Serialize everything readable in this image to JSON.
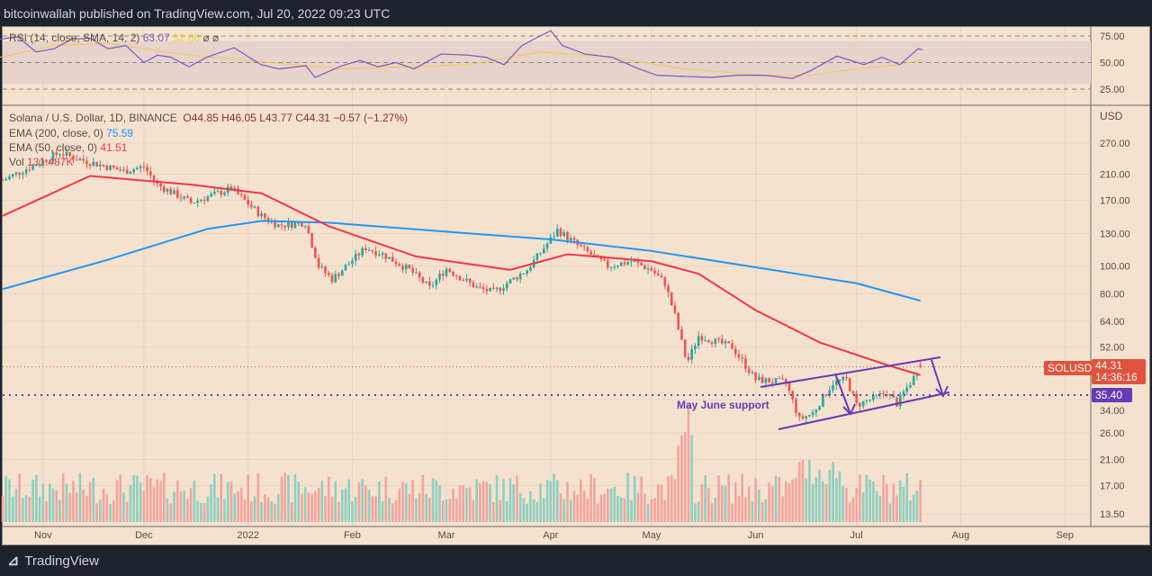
{
  "header": {
    "published": "bitcoinwallah published on TradingView.com, Jul 20, 2022 09:23 UTC"
  },
  "rsi": {
    "label": "RSI (14, close, SMA, 14, 2)",
    "value": "63.07",
    "sma": "52.66",
    "icons": "⌀ ⌀",
    "ticks": [
      "75.00",
      "50.00",
      "25.00"
    ],
    "line": [
      [
        0,
        72
      ],
      [
        20,
        74
      ],
      [
        40,
        60
      ],
      [
        60,
        63
      ],
      [
        80,
        72
      ],
      [
        100,
        73
      ],
      [
        120,
        63
      ],
      [
        140,
        66
      ],
      [
        160,
        50
      ],
      [
        175,
        57
      ],
      [
        190,
        55
      ],
      [
        210,
        46
      ],
      [
        230,
        55
      ],
      [
        260,
        64
      ],
      [
        290,
        48
      ],
      [
        310,
        44
      ],
      [
        340,
        47
      ],
      [
        350,
        36
      ],
      [
        380,
        47
      ],
      [
        400,
        52
      ],
      [
        420,
        46
      ],
      [
        440,
        50
      ],
      [
        460,
        44
      ],
      [
        490,
        58
      ],
      [
        520,
        57
      ],
      [
        540,
        55
      ],
      [
        560,
        48
      ],
      [
        580,
        66
      ],
      [
        600,
        75
      ],
      [
        612,
        80
      ],
      [
        625,
        66
      ],
      [
        650,
        58
      ],
      [
        680,
        55
      ],
      [
        710,
        44
      ],
      [
        730,
        38
      ],
      [
        760,
        37
      ],
      [
        790,
        36
      ],
      [
        820,
        38
      ],
      [
        850,
        38
      ],
      [
        880,
        35
      ],
      [
        900,
        42
      ],
      [
        930,
        56
      ],
      [
        960,
        48
      ],
      [
        980,
        55
      ],
      [
        1000,
        48
      ],
      [
        1020,
        63
      ],
      [
        1025,
        62
      ]
    ],
    "sma_line": [
      [
        0,
        55
      ],
      [
        60,
        66
      ],
      [
        120,
        68
      ],
      [
        200,
        58
      ],
      [
        300,
        50
      ],
      [
        380,
        44
      ],
      [
        450,
        46
      ],
      [
        520,
        48
      ],
      [
        600,
        60
      ],
      [
        680,
        55
      ],
      [
        760,
        44
      ],
      [
        850,
        38
      ],
      [
        900,
        38
      ],
      [
        950,
        44
      ],
      [
        1000,
        48
      ],
      [
        1025,
        52.66
      ]
    ]
  },
  "legend": {
    "title": "Solana / U.S. Dollar, 1D, BINANCE",
    "o": "O44.85",
    "h": "H46.05",
    "l": "L43.77",
    "c": "C44.31",
    "chg": "−0.57 (−1.27%)",
    "ema200_label": "EMA (200, close, 0)",
    "ema200": "75.59",
    "ema50_label": "EMA (50, close, 0)",
    "ema50": "41.51",
    "vol_label": "Vol",
    "vol": "131.487K"
  },
  "colors": {
    "ema200": "#2196f3",
    "ema50": "#f23645",
    "up": "#26a69a",
    "down": "#ef5350",
    "annot": "#673ab7",
    "bg": "#f4e2cf"
  },
  "chart_data": {
    "type": "candlestick",
    "scale": "log",
    "currency": "USD",
    "price_ticks": [
      "270.00",
      "210.00",
      "170.00",
      "130.00",
      "100.00",
      "80.00",
      "64.00",
      "52.00",
      "34.00",
      "26.00",
      "21.00",
      "17.00",
      "13.50"
    ],
    "time_ticks": [
      "Nov",
      "Dec",
      "2022",
      "Feb",
      "Mar",
      "Apr",
      "May",
      "Jun",
      "Jul",
      "Aug",
      "Sep"
    ],
    "close_path": [
      [
        "2021-10-20",
        200
      ],
      [
        "2021-11-06",
        250
      ],
      [
        "2021-11-10",
        240
      ],
      [
        "2021-11-25",
        215
      ],
      [
        "2021-12-01",
        223
      ],
      [
        "2021-12-05",
        193
      ],
      [
        "2021-12-15",
        167
      ],
      [
        "2021-12-27",
        187
      ],
      [
        "2022-01-05",
        150
      ],
      [
        "2022-01-10",
        139
      ],
      [
        "2022-01-18",
        142
      ],
      [
        "2022-01-22",
        100
      ],
      [
        "2022-01-26",
        90
      ],
      [
        "2022-02-05",
        116
      ],
      [
        "2022-02-10",
        110
      ],
      [
        "2022-02-18",
        97
      ],
      [
        "2022-02-24",
        84
      ],
      [
        "2022-03-01",
        98
      ],
      [
        "2022-03-10",
        84
      ],
      [
        "2022-03-15",
        81
      ],
      [
        "2022-03-25",
        97
      ],
      [
        "2022-04-01",
        124
      ],
      [
        "2022-04-03",
        134
      ],
      [
        "2022-04-10",
        116
      ],
      [
        "2022-04-18",
        100
      ],
      [
        "2022-04-25",
        104
      ],
      [
        "2022-05-01",
        97
      ],
      [
        "2022-05-05",
        87
      ],
      [
        "2022-05-08",
        67
      ],
      [
        "2022-05-11",
        48.5
      ],
      [
        "2022-05-12",
        47
      ],
      [
        "2022-05-15",
        57
      ],
      [
        "2022-05-25",
        52
      ],
      [
        "2022-06-01",
        40
      ],
      [
        "2022-06-10",
        39
      ],
      [
        "2022-06-14",
        29
      ],
      [
        "2022-06-18",
        30.5
      ],
      [
        "2022-06-24",
        39
      ],
      [
        "2022-06-28",
        40
      ],
      [
        "2022-07-01",
        32.6
      ],
      [
        "2022-07-05",
        34
      ],
      [
        "2022-07-10",
        36
      ],
      [
        "2022-07-13",
        33
      ],
      [
        "2022-07-17",
        39
      ],
      [
        "2022-07-20",
        44.31
      ]
    ],
    "ema200": [
      [
        "2021-10-20",
        83
      ],
      [
        "2021-11-20",
        105
      ],
      [
        "2021-12-20",
        135
      ],
      [
        "2022-01-05",
        144
      ],
      [
        "2022-01-25",
        142
      ],
      [
        "2022-03-01",
        132
      ],
      [
        "2022-04-01",
        124
      ],
      [
        "2022-05-01",
        113
      ],
      [
        "2022-06-01",
        99
      ],
      [
        "2022-07-01",
        87
      ],
      [
        "2022-07-20",
        75.59
      ]
    ],
    "ema50": [
      [
        "2021-10-20",
        150
      ],
      [
        "2021-11-15",
        207
      ],
      [
        "2021-12-15",
        193
      ],
      [
        "2022-01-05",
        180
      ],
      [
        "2022-01-25",
        138
      ],
      [
        "2022-02-20",
        108
      ],
      [
        "2022-03-20",
        97
      ],
      [
        "2022-04-06",
        110
      ],
      [
        "2022-05-01",
        104
      ],
      [
        "2022-05-15",
        94
      ],
      [
        "2022-06-01",
        70
      ],
      [
        "2022-06-20",
        54
      ],
      [
        "2022-07-10",
        45
      ],
      [
        "2022-07-20",
        41.51
      ]
    ]
  },
  "last_price": {
    "symbol": "SOLUSD",
    "price": "44.31",
    "countdown": "14:36:16"
  },
  "support": {
    "price": "35.40",
    "label": "May June support"
  },
  "footer": {
    "brand": "TradingView"
  }
}
